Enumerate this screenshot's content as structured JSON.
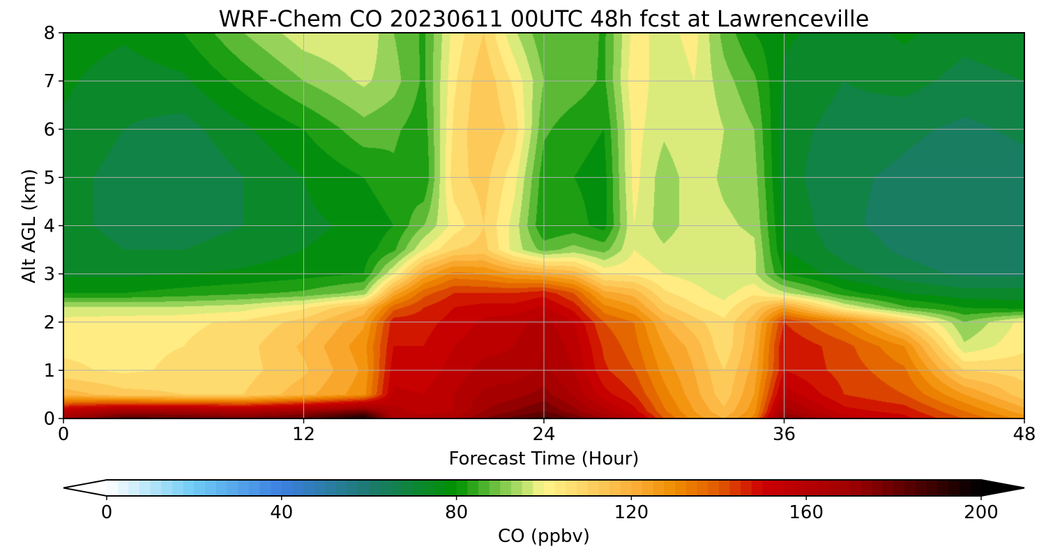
{
  "chart_data": {
    "type": "heatmap",
    "title": "WRF-Chem CO  20230611 00UTC 48h fcst at Lawrenceville",
    "xlabel": "Forecast Time (Hour)",
    "ylabel": "Alt AGL (km)",
    "xlim": [
      0,
      48
    ],
    "ylim": [
      0,
      8
    ],
    "xticks": [
      "0",
      "12",
      "24",
      "36",
      "48"
    ],
    "yticks": [
      "0",
      "1",
      "2",
      "3",
      "4",
      "5",
      "6",
      "7",
      "8"
    ],
    "grid": true,
    "colorbar": {
      "label": "CO  (ppbv)",
      "range": [
        0,
        200
      ],
      "ticks": [
        "0",
        "40",
        "80",
        "120",
        "160",
        "200"
      ],
      "extend": "both",
      "colors": [
        {
          "value": 0,
          "color": "#ffffff"
        },
        {
          "value": 20,
          "color": "#6ecbf5"
        },
        {
          "value": 40,
          "color": "#3c7fe0"
        },
        {
          "value": 60,
          "color": "#1c7a70"
        },
        {
          "value": 80,
          "color": "#009100"
        },
        {
          "value": 95,
          "color": "#b5e06c"
        },
        {
          "value": 100,
          "color": "#fff58c"
        },
        {
          "value": 120,
          "color": "#fbb03b"
        },
        {
          "value": 130,
          "color": "#f08c00"
        },
        {
          "value": 140,
          "color": "#e05a00"
        },
        {
          "value": 150,
          "color": "#cc0000"
        },
        {
          "value": 170,
          "color": "#a00000"
        },
        {
          "value": 200,
          "color": "#000000"
        }
      ]
    },
    "x": [
      0,
      3,
      6,
      9,
      12,
      15,
      16.5,
      18,
      19.5,
      21,
      22.5,
      24,
      25.5,
      27,
      28.5,
      30,
      31.5,
      33,
      34.5,
      36,
      39,
      42,
      45,
      48
    ],
    "y": [
      0,
      0.15,
      0.5,
      1,
      1.5,
      2,
      2.3,
      2.6,
      3,
      3.5,
      4,
      5,
      6,
      7,
      8
    ],
    "z": [
      [
        168,
        185,
        182,
        178,
        182,
        198,
        165,
        162,
        165,
        175,
        182,
        188,
        180,
        170,
        160,
        140,
        128,
        120,
        132,
        178,
        158,
        152,
        140,
        128
      ],
      [
        158,
        168,
        168,
        165,
        170,
        178,
        162,
        158,
        160,
        170,
        175,
        180,
        172,
        162,
        152,
        136,
        125,
        116,
        128,
        168,
        152,
        148,
        135,
        122
      ],
      [
        118,
        112,
        110,
        110,
        118,
        128,
        156,
        155,
        160,
        166,
        168,
        172,
        164,
        152,
        145,
        132,
        122,
        112,
        125,
        158,
        145,
        140,
        125,
        112
      ],
      [
        106,
        104,
        106,
        108,
        114,
        126,
        153,
        152,
        157,
        162,
        162,
        166,
        160,
        146,
        140,
        128,
        120,
        110,
        122,
        150,
        143,
        136,
        110,
        108
      ],
      [
        104,
        104,
        105,
        108,
        116,
        128,
        150,
        150,
        155,
        158,
        160,
        165,
        158,
        144,
        137,
        125,
        118,
        106,
        120,
        150,
        142,
        130,
        96,
        104
      ],
      [
        102,
        103,
        104,
        106,
        112,
        124,
        148,
        148,
        152,
        156,
        158,
        162,
        155,
        140,
        135,
        120,
        112,
        106,
        118,
        145,
        132,
        112,
        90,
        102
      ],
      [
        96,
        96,
        96,
        98,
        104,
        116,
        138,
        145,
        150,
        152,
        152,
        156,
        148,
        132,
        126,
        112,
        106,
        102,
        112,
        125,
        100,
        86,
        80,
        78
      ],
      [
        80,
        80,
        82,
        84,
        86,
        92,
        122,
        138,
        145,
        145,
        145,
        148,
        140,
        122,
        118,
        106,
        102,
        98,
        104,
        96,
        82,
        75,
        72,
        72
      ],
      [
        74,
        74,
        75,
        76,
        78,
        80,
        100,
        122,
        132,
        130,
        125,
        122,
        118,
        104,
        104,
        100,
        98,
        96,
        96,
        80,
        72,
        67,
        64,
        64
      ],
      [
        72,
        70,
        70,
        72,
        75,
        77,
        84,
        100,
        110,
        112,
        98,
        88,
        92,
        88,
        100,
        96,
        100,
        98,
        96,
        75,
        68,
        64,
        62,
        62
      ],
      [
        71,
        69,
        68,
        70,
        74,
        76,
        80,
        90,
        102,
        110,
        98,
        80,
        82,
        78,
        100,
        92,
        98,
        96,
        94,
        74,
        66,
        63,
        62,
        62
      ],
      [
        72,
        68,
        65,
        70,
        75,
        80,
        84,
        80,
        108,
        112,
        102,
        82,
        80,
        78,
        102,
        92,
        98,
        94,
        92,
        72,
        66,
        64,
        62,
        63
      ],
      [
        74,
        70,
        68,
        74,
        80,
        88,
        86,
        82,
        106,
        115,
        108,
        86,
        82,
        80,
        102,
        96,
        100,
        95,
        90,
        72,
        68,
        66,
        64,
        66
      ],
      [
        76,
        72,
        74,
        82,
        90,
        96,
        92,
        84,
        104,
        114,
        104,
        90,
        88,
        84,
        104,
        96,
        100,
        92,
        86,
        74,
        70,
        72,
        68,
        70
      ],
      [
        78,
        76,
        80,
        90,
        98,
        100,
        90,
        84,
        102,
        110,
        96,
        86,
        90,
        84,
        102,
        98,
        102,
        88,
        80,
        76,
        72,
        76,
        72,
        74
      ]
    ]
  }
}
